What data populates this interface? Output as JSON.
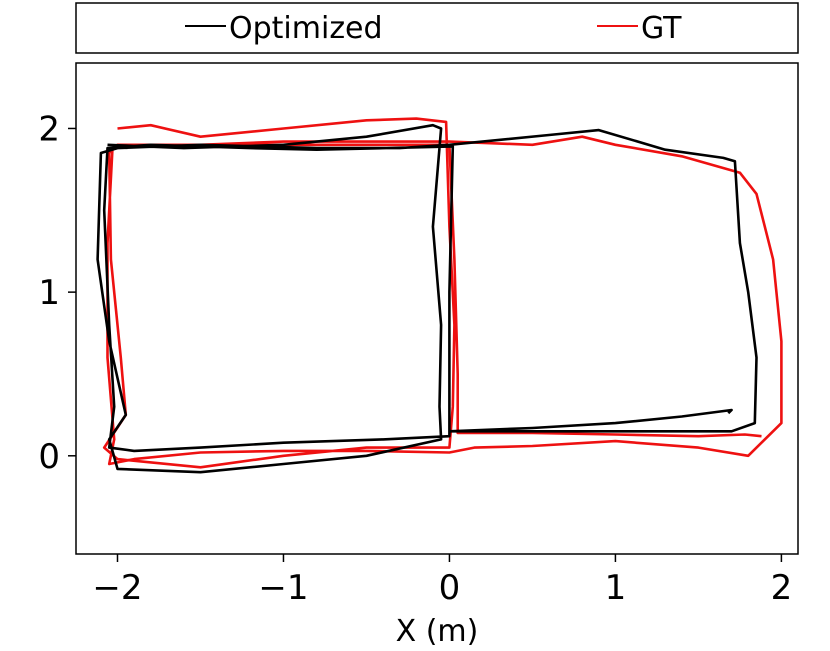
{
  "chart_data": {
    "type": "line",
    "title": "",
    "xlabel": "X (m)",
    "ylabel": "",
    "xlim": [
      -2.25,
      2.1
    ],
    "ylim": [
      -0.6,
      2.4
    ],
    "xticks": [
      -2,
      -1,
      0,
      1,
      2
    ],
    "xtick_labels": [
      "−2",
      "−1",
      "0",
      "1",
      "2"
    ],
    "yticks": [
      0,
      1,
      2
    ],
    "ytick_labels": [
      "0",
      "1",
      "2"
    ],
    "grid": false,
    "legend_position": "top (above plot)",
    "series": [
      {
        "name": "Optimized",
        "color": "#000000",
        "points": [
          [
            -2.06,
            1.9
          ],
          [
            -1.6,
            1.88
          ],
          [
            -1.0,
            1.9
          ],
          [
            -0.5,
            1.95
          ],
          [
            -0.1,
            2.02
          ],
          [
            -0.05,
            2.0
          ],
          [
            -0.1,
            1.4
          ],
          [
            -0.05,
            0.8
          ],
          [
            -0.06,
            0.3
          ],
          [
            -0.05,
            0.1
          ],
          [
            -0.5,
            0.0
          ],
          [
            -1.0,
            -0.05
          ],
          [
            -1.5,
            -0.1
          ],
          [
            -2.0,
            -0.08
          ],
          [
            -2.05,
            0.1
          ],
          [
            -1.95,
            0.25
          ],
          [
            -2.05,
            0.7
          ],
          [
            -2.12,
            1.2
          ],
          [
            -2.1,
            1.85
          ],
          [
            -2.0,
            1.88
          ],
          [
            -1.5,
            1.9
          ],
          [
            -0.8,
            1.88
          ],
          [
            -0.3,
            1.88
          ],
          [
            0.0,
            1.9
          ],
          [
            0.6,
            1.96
          ],
          [
            0.9,
            1.99
          ],
          [
            1.3,
            1.87
          ],
          [
            1.65,
            1.82
          ],
          [
            1.72,
            1.8
          ],
          [
            1.75,
            1.3
          ],
          [
            1.8,
            1.0
          ],
          [
            1.85,
            0.6
          ],
          [
            1.84,
            0.2
          ],
          [
            1.7,
            0.15
          ],
          [
            1.2,
            0.15
          ],
          [
            0.6,
            0.15
          ],
          [
            0.0,
            0.15
          ],
          [
            0.0,
            0.12
          ],
          [
            -0.4,
            0.1
          ],
          [
            -1.0,
            0.08
          ],
          [
            -1.5,
            0.05
          ],
          [
            -1.9,
            0.03
          ],
          [
            -2.05,
            0.05
          ],
          [
            -2.02,
            0.3
          ],
          [
            -2.05,
            0.8
          ],
          [
            -2.08,
            1.5
          ],
          [
            -2.06,
            1.88
          ],
          [
            -1.8,
            1.9
          ],
          [
            -1.2,
            1.88
          ],
          [
            -0.8,
            1.87
          ],
          [
            0.02,
            1.89
          ],
          [
            0.0,
            1.0
          ],
          [
            0.0,
            0.15
          ],
          [
            0.5,
            0.17
          ],
          [
            1.0,
            0.2
          ],
          [
            1.4,
            0.24
          ],
          [
            1.7,
            0.28
          ],
          [
            1.68,
            0.26
          ]
        ]
      },
      {
        "name": "GT",
        "color": "#ee1111",
        "points": [
          [
            -2.0,
            2.0
          ],
          [
            -1.8,
            2.02
          ],
          [
            -1.5,
            1.95
          ],
          [
            -1.0,
            2.0
          ],
          [
            -0.5,
            2.05
          ],
          [
            -0.2,
            2.06
          ],
          [
            -0.02,
            2.04
          ],
          [
            0.0,
            1.4
          ],
          [
            0.03,
            0.8
          ],
          [
            0.02,
            0.3
          ],
          [
            0.0,
            0.05
          ],
          [
            -0.5,
            0.05
          ],
          [
            -1.0,
            0.0
          ],
          [
            -1.5,
            -0.07
          ],
          [
            -2.0,
            -0.02
          ],
          [
            -2.08,
            0.05
          ],
          [
            -1.95,
            0.25
          ],
          [
            -1.98,
            0.6
          ],
          [
            -2.04,
            1.2
          ],
          [
            -2.05,
            1.85
          ],
          [
            -2.0,
            1.9
          ],
          [
            -1.5,
            1.9
          ],
          [
            -1.0,
            1.92
          ],
          [
            -0.5,
            1.92
          ],
          [
            0.0,
            1.92
          ],
          [
            0.5,
            1.9
          ],
          [
            0.8,
            1.95
          ],
          [
            1.0,
            1.9
          ],
          [
            1.4,
            1.83
          ],
          [
            1.75,
            1.73
          ],
          [
            1.85,
            1.6
          ],
          [
            1.95,
            1.2
          ],
          [
            2.0,
            0.7
          ],
          [
            2.0,
            0.2
          ],
          [
            1.9,
            0.1
          ],
          [
            1.8,
            0.0
          ],
          [
            1.5,
            0.05
          ],
          [
            1.0,
            0.09
          ],
          [
            0.5,
            0.06
          ],
          [
            0.15,
            0.05
          ],
          [
            0.0,
            0.02
          ],
          [
            -0.5,
            0.03
          ],
          [
            -1.0,
            0.03
          ],
          [
            -1.5,
            0.02
          ],
          [
            -1.9,
            -0.02
          ],
          [
            -2.05,
            -0.05
          ],
          [
            -2.02,
            0.1
          ],
          [
            -2.06,
            0.6
          ],
          [
            -2.06,
            1.3
          ],
          [
            -2.03,
            1.88
          ],
          [
            -1.95,
            1.9
          ],
          [
            -1.2,
            1.9
          ],
          [
            -0.5,
            1.9
          ],
          [
            0.0,
            1.9
          ],
          [
            0.03,
            1.2
          ],
          [
            0.05,
            0.5
          ],
          [
            0.05,
            0.14
          ],
          [
            0.5,
            0.14
          ],
          [
            1.0,
            0.13
          ],
          [
            1.5,
            0.12
          ],
          [
            1.78,
            0.13
          ],
          [
            1.88,
            0.12
          ]
        ]
      }
    ]
  }
}
